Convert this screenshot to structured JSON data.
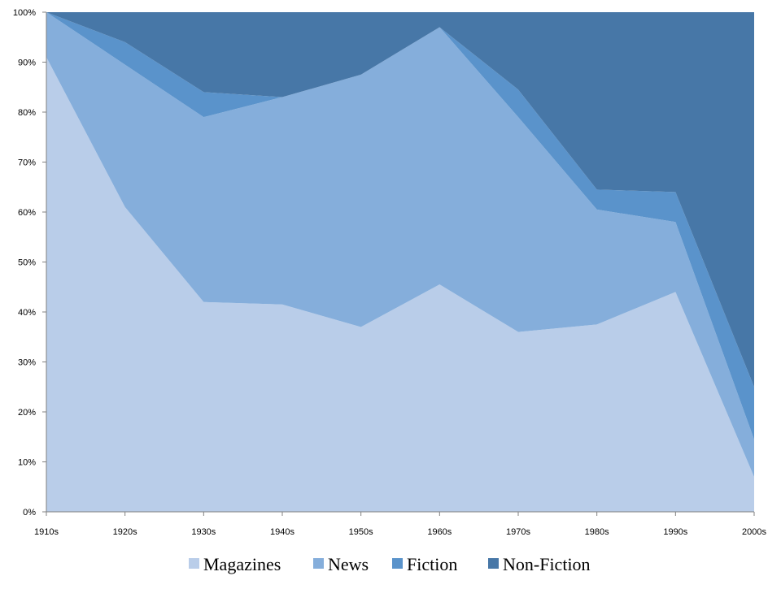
{
  "chart_data": {
    "type": "area",
    "stacked": true,
    "normalized_percent": true,
    "categories": [
      "1910s",
      "1920s",
      "1930s",
      "1940s",
      "1950s",
      "1960s",
      "1970s",
      "1980s",
      "1990s",
      "2000s"
    ],
    "series": [
      {
        "name": "Magazines",
        "color": "#b9cde9",
        "values": [
          91,
          61,
          42,
          41.5,
          37,
          45.5,
          36,
          37.5,
          44,
          7
        ]
      },
      {
        "name": "News",
        "color": "#85aedb",
        "values": [
          9,
          28.5,
          37,
          41.5,
          50.5,
          51.5,
          43,
          23,
          14,
          7.5
        ]
      },
      {
        "name": "Fiction",
        "color": "#5a93cb",
        "values": [
          0,
          4.5,
          5,
          0,
          0,
          0,
          5.5,
          4,
          6,
          10.5
        ]
      },
      {
        "name": "Non-Fiction",
        "color": "#4777a7",
        "values": [
          0,
          6,
          16,
          17,
          12.5,
          3,
          15.5,
          35.5,
          36,
          75
        ]
      }
    ],
    "y_ticks": [
      "0%",
      "10%",
      "20%",
      "30%",
      "40%",
      "50%",
      "60%",
      "70%",
      "80%",
      "90%",
      "100%"
    ],
    "ylim": [
      0,
      100
    ],
    "title": "",
    "xlabel": "",
    "ylabel": "",
    "grid": false,
    "legend_position": "bottom"
  }
}
